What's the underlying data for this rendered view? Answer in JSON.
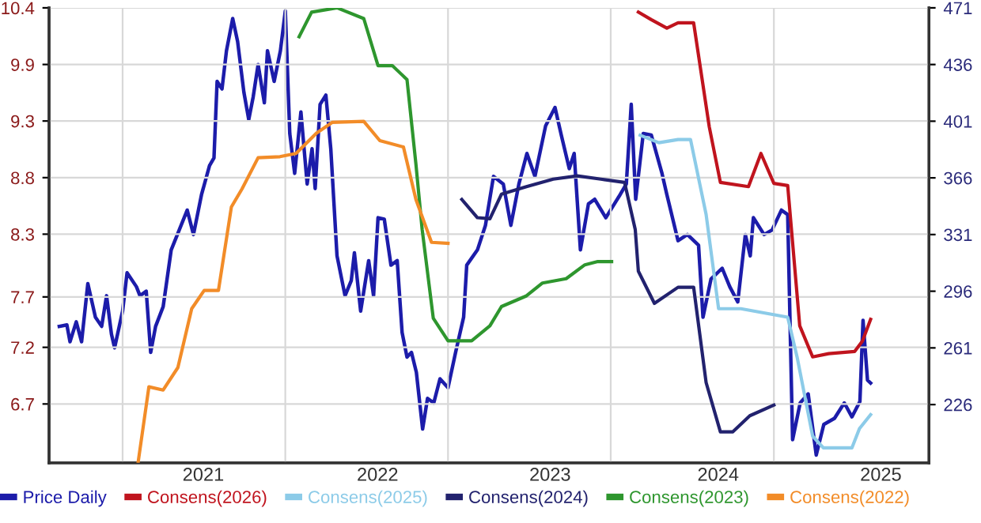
{
  "chart_data": {
    "type": "line",
    "xlim": [
      "2020-07-20",
      "2025-12-15"
    ],
    "xticks": [
      {
        "value": "2021-01-01",
        "label": null
      },
      {
        "value": "2022-01-01",
        "label": null
      },
      {
        "value": "2023-01-01",
        "label": null
      },
      {
        "value": "2024-01-01",
        "label": null
      },
      {
        "value": "2025-01-01",
        "label": null
      },
      {
        "value": "2021-07-01",
        "label": "2021"
      },
      {
        "value": "2022-07-27",
        "label": "2022"
      },
      {
        "value": "2023-08-18",
        "label": "2023"
      },
      {
        "value": "2024-08-29",
        "label": "2024"
      },
      {
        "value": "2025-08-29",
        "label": "2025"
      }
    ],
    "ylim": [
      6.15,
      10.4
    ],
    "yticks": [
      {
        "value": 6.7,
        "label": "6.7"
      },
      {
        "value": 7.229,
        "label": "7.2"
      },
      {
        "value": 7.7,
        "label": "7.7"
      },
      {
        "value": 8.286,
        "label": "8.3"
      },
      {
        "value": 8.814,
        "label": "8.8"
      },
      {
        "value": 9.343,
        "label": "9.3"
      },
      {
        "value": 9.871,
        "label": "9.9"
      },
      {
        "value": 10.4,
        "label": "10.4"
      }
    ],
    "y2lim": [
      190,
      471
    ],
    "y2ticks": [
      226,
      261,
      296,
      331,
      366,
      401,
      436,
      471
    ],
    "grid": true,
    "legend": "bottom",
    "marker": "none",
    "line_style": "solid",
    "series": [
      {
        "name": "Price Daily",
        "color": "#1c1caa",
        "axis": "y2",
        "x": [
          "2020-08-12",
          "2020-08-29",
          "2020-09-05",
          "2020-09-19",
          "2020-10-01",
          "2020-10-15",
          "2020-11-01",
          "2020-11-15",
          "2020-11-26",
          "2020-12-07",
          "2020-12-14",
          "2021-01-01",
          "2021-01-11",
          "2021-02-01",
          "2021-02-09",
          "2021-02-23",
          "2021-03-05",
          "2021-03-16",
          "2021-04-02",
          "2021-04-20",
          "2021-05-08",
          "2021-05-26",
          "2021-06-09",
          "2021-06-27",
          "2021-07-15",
          "2021-07-25",
          "2021-08-01",
          "2021-08-12",
          "2021-08-22",
          "2021-09-05",
          "2021-09-16",
          "2021-09-30",
          "2021-10-11",
          "2021-10-21",
          "2021-11-01",
          "2021-11-15",
          "2021-11-22",
          "2021-12-07",
          "2021-12-21",
          "2022-01-01",
          "2022-01-11",
          "2022-01-22",
          "2022-02-05",
          "2022-02-19",
          "2022-03-02",
          "2022-03-09",
          "2022-03-20",
          "2022-04-02",
          "2022-04-13",
          "2022-04-27",
          "2022-05-15",
          "2022-05-29",
          "2022-06-05",
          "2022-06-19",
          "2022-07-07",
          "2022-07-18",
          "2022-07-28",
          "2022-08-11",
          "2022-08-26",
          "2022-09-09",
          "2022-09-20",
          "2022-10-01",
          "2022-10-11",
          "2022-10-22",
          "2022-11-05",
          "2022-11-16",
          "2022-11-30",
          "2022-12-14",
          "2023-01-01",
          "2023-01-18",
          "2023-02-05",
          "2023-02-12",
          "2023-03-08",
          "2023-03-26",
          "2023-04-13",
          "2023-05-05",
          "2023-05-22",
          "2023-06-09",
          "2023-06-27",
          "2023-07-15",
          "2023-08-08",
          "2023-08-29",
          "2023-09-12",
          "2023-09-30",
          "2023-10-11",
          "2023-10-25",
          "2023-11-12",
          "2023-11-26",
          "2023-12-21",
          "2024-01-22",
          "2024-02-05",
          "2024-02-16",
          "2024-02-26",
          "2024-03-14",
          "2024-04-01",
          "2024-04-25",
          "2024-05-06",
          "2024-05-31",
          "2024-06-21",
          "2024-07-16",
          "2024-07-26",
          "2024-08-13",
          "2024-09-07",
          "2024-09-24",
          "2024-10-12",
          "2024-10-29",
          "2024-11-09",
          "2024-11-16",
          "2024-12-10",
          "2024-12-28",
          "2025-01-18",
          "2025-02-01",
          "2025-02-12",
          "2025-03-01",
          "2025-03-19",
          "2025-04-06",
          "2025-04-23",
          "2025-05-17",
          "2025-06-08",
          "2025-06-25",
          "2025-07-13",
          "2025-07-20",
          "2025-07-30",
          "2025-08-06"
        ],
        "values": [
          274.3,
          275.2,
          264.8,
          277.1,
          264.8,
          300.7,
          279.9,
          274.3,
          293.2,
          269.5,
          261.0,
          283.7,
          307.4,
          298.8,
          293.2,
          296.0,
          258.2,
          274.3,
          286.5,
          321.5,
          333.8,
          346.1,
          331.0,
          355.6,
          373.6,
          378.3,
          425.6,
          420.9,
          444.5,
          464.4,
          450.2,
          419.0,
          402.0,
          416.1,
          436.0,
          412.4,
          444.5,
          425.6,
          444.5,
          469.1,
          393.4,
          368.8,
          406.7,
          362.2,
          384.0,
          359.4,
          411.4,
          417.1,
          384.0,
          317.8,
          293.2,
          302.6,
          319.7,
          283.7,
          314.9,
          293.2,
          341.4,
          340.5,
          312.1,
          314.9,
          270.5,
          255.3,
          258.2,
          245.9,
          210.9,
          229.8,
          227.0,
          241.9,
          236.4,
          258.2,
          279.9,
          312.1,
          321.5,
          336.7,
          366.9,
          362.2,
          336.7,
          362.2,
          381.1,
          366.9,
          398.2,
          409.5,
          392.5,
          371.7,
          381.1,
          321.5,
          349.9,
          352.8,
          341.4,
          355.6,
          362.2,
          411.4,
          352.8,
          393.4,
          392.5,
          368.8,
          355.6,
          327.2,
          331.0,
          324.4,
          279.9,
          303.6,
          310.2,
          298.8,
          289.4,
          331.0,
          317.8,
          341.4,
          331.0,
          333.8,
          346.1,
          343.3,
          204.3,
          227.0,
          232.6,
          194.8,
          213.7,
          217.5,
          227.0,
          218.4,
          227.9,
          278.0,
          241.1,
          239.3
        ]
      },
      {
        "name": "Consens(2026)",
        "color": "#c0141e",
        "x": [
          "2024-03-03",
          "2024-04-01",
          "2024-05-06",
          "2024-05-31",
          "2024-07-05",
          "2024-08-09",
          "2024-09-03",
          "2024-11-05",
          "2024-12-03",
          "2025-01-01",
          "2025-02-01",
          "2025-02-28",
          "2025-03-29",
          "2025-05-04",
          "2025-07-01",
          "2025-07-19",
          "2025-08-06"
        ],
        "values": [
          10.36,
          10.29,
          10.21,
          10.26,
          10.26,
          9.29,
          8.77,
          8.73,
          9.04,
          8.76,
          8.74,
          7.43,
          7.14,
          7.17,
          7.19,
          7.29,
          7.49
        ]
      },
      {
        "name": "Consens(2025)",
        "color": "#8ccbe8",
        "x": [
          "2024-03-07",
          "2024-04-18",
          "2024-05-31",
          "2024-06-28",
          "2024-08-02",
          "2024-08-30",
          "2024-10-19",
          "2025-02-01",
          "2025-02-22",
          "2025-03-29",
          "2025-04-22",
          "2025-06-25",
          "2025-07-12",
          "2025-08-06"
        ],
        "values": [
          9.21,
          9.14,
          9.17,
          9.17,
          8.47,
          7.59,
          7.59,
          7.51,
          7.14,
          6.4,
          6.29,
          6.29,
          6.47,
          6.6
        ]
      },
      {
        "name": "Consens(2024)",
        "color": "#22226e",
        "x": [
          "2023-02-01",
          "2023-03-08",
          "2023-04-05",
          "2023-05-01",
          "2023-06-26",
          "2023-08-25",
          "2023-10-18",
          "2023-12-10",
          "2024-02-01",
          "2024-02-25",
          "2024-03-03",
          "2024-04-08",
          "2024-05-31",
          "2024-07-05",
          "2024-08-02",
          "2024-09-03",
          "2024-10-01",
          "2024-11-08",
          "2025-01-01"
        ],
        "values": [
          8.61,
          8.44,
          8.43,
          8.66,
          8.73,
          8.8,
          8.83,
          8.8,
          8.77,
          8.33,
          7.94,
          7.64,
          7.79,
          7.79,
          6.9,
          6.44,
          6.44,
          6.59,
          6.69
        ]
      },
      {
        "name": "Consens(2023)",
        "color": "#2e962e",
        "x": [
          "2022-02-01",
          "2022-03-01",
          "2022-04-27",
          "2022-06-26",
          "2022-07-28",
          "2022-08-29",
          "2022-10-01",
          "2022-10-21",
          "2022-11-04",
          "2022-11-29",
          "2023-01-01",
          "2023-02-23",
          "2023-04-05",
          "2023-05-01",
          "2023-06-26",
          "2023-08-01",
          "2023-09-23",
          "2023-11-04",
          "2023-12-03",
          "2024-01-03"
        ],
        "values": [
          10.13,
          10.36,
          10.4,
          10.3,
          9.86,
          9.86,
          9.73,
          8.94,
          8.33,
          7.5,
          7.29,
          7.29,
          7.43,
          7.61,
          7.71,
          7.83,
          7.87,
          8.0,
          8.03,
          8.03
        ]
      },
      {
        "name": "Consens(2022)",
        "color": "#f28c28",
        "x": [
          "2021-02-05",
          "2021-03-01",
          "2021-04-02",
          "2021-05-05",
          "2021-06-05",
          "2021-07-03",
          "2021-08-04",
          "2021-09-02",
          "2021-09-26",
          "2021-11-01",
          "2021-12-20",
          "2022-01-25",
          "2022-03-12",
          "2022-04-16",
          "2022-06-26",
          "2022-08-01",
          "2022-09-23",
          "2022-10-21",
          "2022-11-25",
          "2023-01-01"
        ],
        "values": [
          6.16,
          6.86,
          6.83,
          7.04,
          7.59,
          7.76,
          7.76,
          8.54,
          8.71,
          9.0,
          9.01,
          9.04,
          9.23,
          9.33,
          9.34,
          9.16,
          9.1,
          8.61,
          8.21,
          8.2
        ]
      }
    ]
  }
}
